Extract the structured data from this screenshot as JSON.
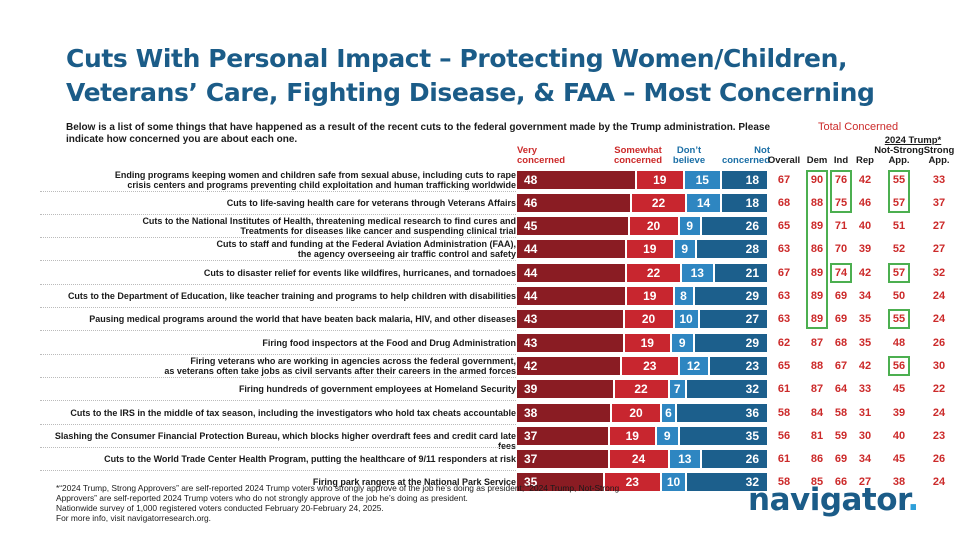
{
  "title": "Cuts With Personal Impact – Protecting Women/Children, Veterans’ Care, Fighting Disease, & FAA – Most Concerning",
  "subtitle": "Below is a list of some things that have happened as a result of the recent cuts to the federal government made by the Trump administration. Please indicate how concerned you are about each one.",
  "headers": {
    "very_line1": "Very",
    "very_line2": "concerned",
    "somewhat_line1": "Somewhat",
    "somewhat_line2": "concerned",
    "dont_line1": "Don’t",
    "dont_line2": "believe",
    "not_line1": "Not",
    "not_line2": "concerned",
    "total_concerned": "Total Concerned",
    "overall": "Overall",
    "dem": "Dem",
    "ind": "Ind",
    "rep": "Rep",
    "trump_group": "2024 Trump*",
    "notstrong_line1": "Not-Strong",
    "notstrong_line2": "App.",
    "strong_line1": "Strong",
    "strong_line2": "App."
  },
  "chart_data": {
    "type": "bar",
    "stacked": true,
    "orientation": "horizontal",
    "categories": [
      "Ending programs keeping women and children safe from sexual abuse, including cuts to rape crisis centers and programs preventing child exploitation and human trafficking worldwide",
      "Cuts to life-saving health care for veterans through Veterans Affairs",
      "Cuts to the National Institutes of Health, threatening medical research to find cures and Treatments for diseases like cancer and suspending clinical trial",
      "Cuts to staff and funding at the Federal Aviation Administration (FAA), the agency overseeing air traffic control and safety",
      "Cuts to disaster relief for events like wildfires, hurricanes, and tornadoes",
      "Cuts to the Department of Education, like teacher training and programs to help children with disabilities",
      "Pausing medical programs around the world that have beaten back malaria, HIV, and other diseases",
      "Firing food inspectors at the Food and Drug Administration",
      "Firing veterans who are working in agencies across the federal government, as veterans often take jobs as civil servants after their careers in the armed forces",
      "Firing hundreds of government employees at Homeland Security",
      "Cuts to the IRS in the middle of tax season, including the investigators who hold tax cheats accountable",
      "Slashing the Consumer Financial Protection Bureau, which blocks higher overdraft fees and credit card late fees",
      "Cuts to the World Trade Center Health Program, putting the healthcare of 9/11 responders at risk",
      "Firing park rangers at the National Park Service"
    ],
    "label_lines": [
      [
        "Ending programs keeping women and children safe from sexual abuse, including cuts to rape",
        "crisis centers and programs preventing child exploitation and human trafficking worldwide"
      ],
      [
        "Cuts to life-saving health care for veterans through Veterans Affairs"
      ],
      [
        "Cuts to the National Institutes of Health, threatening medical research to find cures and",
        "Treatments for diseases like cancer and suspending clinical trial"
      ],
      [
        "Cuts to staff and funding at the Federal Aviation Administration (FAA),",
        "the agency overseeing air traffic control and safety"
      ],
      [
        "Cuts to disaster relief for events like wildfires, hurricanes, and tornadoes"
      ],
      [
        "Cuts to the Department of Education, like teacher training and programs to help children with disabilities"
      ],
      [
        "Pausing medical programs around the world that have beaten back malaria, HIV, and other diseases"
      ],
      [
        "Firing food inspectors at the Food and Drug Administration"
      ],
      [
        "Firing veterans who are working in agencies across the federal government,",
        "as veterans often take jobs as civil servants after their careers in the armed forces"
      ],
      [
        "Firing hundreds of government employees at Homeland Security"
      ],
      [
        "Cuts to the IRS in the middle of tax season, including the investigators who hold tax cheats accountable"
      ],
      [
        "Slashing the Consumer Financial Protection Bureau, which blocks higher overdraft fees and credit card late fees"
      ],
      [
        "Cuts to the World Trade Center Health Program, putting the healthcare of 9/11 responders at risk"
      ],
      [
        "Firing park rangers at the National Park Service"
      ]
    ],
    "series": [
      {
        "name": "Very concerned",
        "color": "#8a1c23",
        "values": [
          48,
          46,
          45,
          44,
          44,
          44,
          43,
          43,
          42,
          39,
          38,
          37,
          37,
          35
        ]
      },
      {
        "name": "Somewhat concerned",
        "color": "#c8262f",
        "values": [
          19,
          22,
          20,
          19,
          22,
          19,
          20,
          19,
          23,
          22,
          20,
          19,
          24,
          23
        ]
      },
      {
        "name": "Don’t believe",
        "color": "#2e86c1",
        "values": [
          15,
          14,
          9,
          9,
          13,
          8,
          10,
          9,
          12,
          7,
          6,
          9,
          13,
          10
        ]
      },
      {
        "name": "Not concerned",
        "color": "#1c5f8c",
        "values": [
          18,
          18,
          26,
          28,
          21,
          29,
          27,
          29,
          23,
          32,
          36,
          35,
          26,
          32
        ]
      }
    ],
    "total_concerned": {
      "overall": [
        67,
        68,
        65,
        63,
        67,
        63,
        63,
        62,
        65,
        61,
        58,
        56,
        61,
        58
      ],
      "dem": [
        90,
        88,
        89,
        86,
        89,
        89,
        89,
        87,
        88,
        87,
        84,
        81,
        86,
        85
      ],
      "ind": [
        76,
        75,
        71,
        70,
        74,
        69,
        69,
        68,
        67,
        64,
        58,
        59,
        69,
        66
      ],
      "rep": [
        42,
        46,
        40,
        39,
        42,
        34,
        35,
        35,
        42,
        33,
        31,
        30,
        34,
        27
      ],
      "trump_not_strong": [
        55,
        57,
        51,
        52,
        57,
        50,
        55,
        48,
        56,
        45,
        39,
        40,
        45,
        38
      ],
      "trump_strong": [
        33,
        37,
        27,
        27,
        32,
        24,
        24,
        26,
        30,
        22,
        24,
        23,
        26,
        24
      ]
    },
    "highlights": {
      "dem_rows": [
        0,
        1,
        2,
        3,
        4,
        5,
        6
      ],
      "ind_rows": [
        0,
        1,
        4
      ],
      "trump_not_strong_rows": [
        0,
        1,
        4,
        6,
        8
      ]
    },
    "highlight_color": "#4caf50",
    "value_color": "#cc2a2a",
    "xlim": [
      0,
      100
    ]
  },
  "footnote": {
    "line1": "*“2024 Trump, Strong Approvers” are self-reported 2024 Trump voters who strongly approve of the job he’s doing as president; “2024 Trump, Not-Strong",
    "line2": "Approvers” are self-reported 2024 Trump voters who do not strongly approve of the job he’s doing as president.",
    "line3": "Nationwide survey of 1,000 registered voters conducted February 20-February 24, 2025.",
    "line4": "For more info, visit navigatorresearch.org."
  },
  "logo": {
    "text": "navigator",
    "dot": "."
  }
}
